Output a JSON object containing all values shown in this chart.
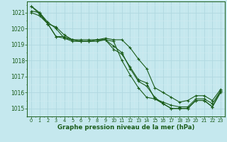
{
  "background_color": "#c5e8ee",
  "grid_color_major": "#b0d8e0",
  "grid_color_minor": "#d0eaf0",
  "line_color": "#1a5c1a",
  "xlabel": "Graphe pression niveau de la mer (hPa)",
  "xlabel_color": "#1a5c1a",
  "tick_color": "#1a5c1a",
  "xlim": [
    -0.5,
    23.5
  ],
  "ylim": [
    1014.5,
    1021.7
  ],
  "yticks": [
    1015,
    1016,
    1017,
    1018,
    1019,
    1020,
    1021
  ],
  "xticks": [
    0,
    1,
    2,
    3,
    4,
    5,
    6,
    7,
    8,
    9,
    10,
    11,
    12,
    13,
    14,
    15,
    16,
    17,
    18,
    19,
    20,
    21,
    22,
    23
  ],
  "series": [
    [
      1021.4,
      1020.9,
      1020.3,
      1020.1,
      1019.6,
      1019.3,
      1019.3,
      1019.3,
      1019.3,
      1019.4,
      1019.3,
      1019.3,
      1018.8,
      1018.1,
      1017.5,
      1016.3,
      1016.0,
      1015.7,
      1015.4,
      1015.5,
      1015.8,
      1015.8,
      1015.5,
      1016.2
    ],
    [
      1021.0,
      1020.8,
      1020.3,
      1019.5,
      1019.4,
      1019.3,
      1019.2,
      1019.2,
      1019.3,
      1019.3,
      1018.7,
      1018.4,
      1017.6,
      1016.8,
      1016.6,
      1015.6,
      1015.4,
      1015.2,
      1015.1,
      1015.1,
      1015.6,
      1015.6,
      1015.3,
      1016.1
    ],
    [
      1021.4,
      1021.0,
      1020.3,
      1019.5,
      1019.5,
      1019.3,
      1019.2,
      1019.2,
      1019.2,
      1019.3,
      1018.9,
      1018.5,
      1017.5,
      1016.7,
      1016.4,
      1015.7,
      1015.3,
      1015.0,
      1015.0,
      1015.0,
      1015.5,
      1015.5,
      1015.1,
      1016.0
    ],
    [
      1021.1,
      1021.0,
      1020.4,
      1020.0,
      1019.4,
      1019.2,
      1019.2,
      1019.2,
      1019.3,
      1019.3,
      1019.2,
      1018.0,
      1017.1,
      1016.3,
      1015.7,
      1015.6,
      1015.3,
      1015.0,
      1015.0,
      1015.0,
      1015.5,
      1015.5,
      1015.1,
      1016.1
    ]
  ]
}
